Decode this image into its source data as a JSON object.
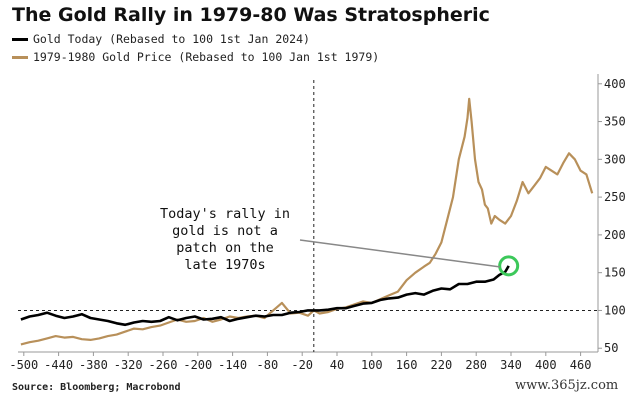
{
  "chart_data": {
    "type": "line",
    "title": "The Gold Rally in 1979-80 Was Stratospheric",
    "source": "Source: Bloomberg; Macrobond",
    "watermark": "www.365jz.com",
    "annotation": [
      "Today's rally in",
      "gold is not a",
      "patch on the",
      "late 1970s"
    ],
    "xlim": [
      -510,
      490
    ],
    "ylim": [
      45,
      405
    ],
    "x_ticks": [
      -500,
      -440,
      -380,
      -320,
      -260,
      -200,
      -140,
      -80,
      -20,
      40,
      100,
      160,
      220,
      280,
      340,
      400,
      460
    ],
    "y_ticks": [
      50,
      100,
      150,
      200,
      250,
      300,
      350,
      400
    ],
    "reference_line_y": 100,
    "reference_line_x": 0,
    "colors": {
      "today": "#000000",
      "late70s": "#b8905a",
      "highlight": "#3cc85a",
      "annotation_line": "#888888"
    },
    "series": [
      {
        "name": "Gold Today (Rebased to 100 1st Jan 2024)",
        "key": "today",
        "x": [
          -505,
          -490,
          -475,
          -460,
          -445,
          -430,
          -415,
          -400,
          -385,
          -370,
          -355,
          -340,
          -325,
          -310,
          -295,
          -280,
          -265,
          -250,
          -235,
          -220,
          -205,
          -190,
          -175,
          -160,
          -145,
          -130,
          -115,
          -100,
          -85,
          -70,
          -55,
          -40,
          -25,
          -10,
          0,
          10,
          25,
          40,
          55,
          70,
          85,
          100,
          115,
          130,
          145,
          160,
          175,
          190,
          205,
          220,
          235,
          250,
          265,
          280,
          295,
          310,
          320,
          330,
          336
        ],
        "y": [
          88,
          92,
          94,
          97,
          93,
          90,
          92,
          95,
          90,
          88,
          86,
          83,
          81,
          84,
          86,
          85,
          86,
          91,
          87,
          90,
          92,
          88,
          89,
          91,
          86,
          89,
          91,
          93,
          92,
          94,
          94,
          97,
          98,
          100,
          100,
          100,
          101,
          103,
          103,
          106,
          109,
          110,
          114,
          116,
          117,
          121,
          123,
          121,
          126,
          129,
          128,
          135,
          135,
          138,
          138,
          141,
          147,
          151,
          159
        ]
      },
      {
        "name": "1979-1980 Gold Price (Rebased to 100 Jan 1st 1979)",
        "key": "late70s",
        "x": [
          -505,
          -490,
          -475,
          -460,
          -445,
          -430,
          -415,
          -400,
          -385,
          -370,
          -355,
          -340,
          -325,
          -310,
          -295,
          -280,
          -265,
          -250,
          -235,
          -220,
          -205,
          -190,
          -175,
          -160,
          -145,
          -130,
          -115,
          -100,
          -85,
          -70,
          -55,
          -40,
          -25,
          -10,
          0,
          10,
          25,
          40,
          55,
          70,
          85,
          100,
          115,
          130,
          145,
          160,
          175,
          190,
          200,
          210,
          220,
          230,
          240,
          250,
          260,
          265,
          268,
          272,
          278,
          284,
          290,
          295,
          300,
          306,
          312,
          320,
          330,
          340,
          350,
          360,
          370,
          380,
          390,
          400,
          410,
          420,
          430,
          440,
          450,
          460,
          470,
          480
        ],
        "y": [
          55,
          58,
          60,
          63,
          66,
          64,
          65,
          62,
          61,
          63,
          66,
          68,
          72,
          76,
          75,
          78,
          80,
          84,
          88,
          85,
          86,
          90,
          85,
          88,
          92,
          90,
          92,
          93,
          90,
          100,
          110,
          96,
          97,
          93,
          100,
          96,
          98,
          102,
          104,
          108,
          112,
          110,
          115,
          120,
          125,
          140,
          150,
          158,
          163,
          175,
          190,
          220,
          250,
          300,
          330,
          355,
          380,
          350,
          300,
          270,
          260,
          240,
          235,
          215,
          225,
          220,
          215,
          225,
          245,
          270,
          255,
          265,
          275,
          290,
          285,
          280,
          295,
          308,
          300,
          285,
          280,
          255
        ]
      }
    ]
  }
}
